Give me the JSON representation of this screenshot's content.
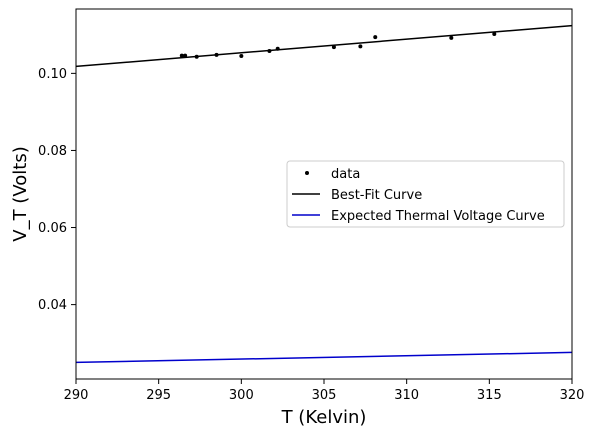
{
  "chart_data": {
    "type": "scatter",
    "title": "",
    "xlabel": "T (Kelvin)",
    "ylabel": "V_T (Volts)",
    "xlim": [
      290,
      320
    ],
    "ylim": [
      0.0207,
      0.1167
    ],
    "xticks": [
      290,
      295,
      300,
      305,
      310,
      315,
      320
    ],
    "xtick_labels": [
      "290",
      "295",
      "300",
      "305",
      "310",
      "315",
      "320"
    ],
    "yticks": [
      0.04,
      0.06,
      0.08,
      0.1
    ],
    "ytick_labels": [
      "0.04",
      "0.06",
      "0.08",
      "0.10"
    ],
    "grid": false,
    "legend_position": "center-right",
    "series": [
      {
        "name": "data",
        "kind": "scatter",
        "color": "#000000",
        "x": [
          296.4,
          296.6,
          297.3,
          298.5,
          300.0,
          301.7,
          302.2,
          305.6,
          307.2,
          308.1,
          312.7,
          315.3
        ],
        "y": [
          0.1046,
          0.1046,
          0.1043,
          0.1048,
          0.1045,
          0.1058,
          0.1064,
          0.1068,
          0.107,
          0.1094,
          0.1092,
          0.1102
        ]
      },
      {
        "name": "Best-Fit Curve",
        "kind": "line",
        "color": "#000000",
        "x": [
          290,
          320
        ],
        "y": [
          0.1018,
          0.1124
        ]
      },
      {
        "name": "Expected Thermal Voltage Curve",
        "kind": "line",
        "color": "#0000cc",
        "x": [
          290,
          320
        ],
        "y": [
          0.025,
          0.0276
        ]
      }
    ]
  }
}
